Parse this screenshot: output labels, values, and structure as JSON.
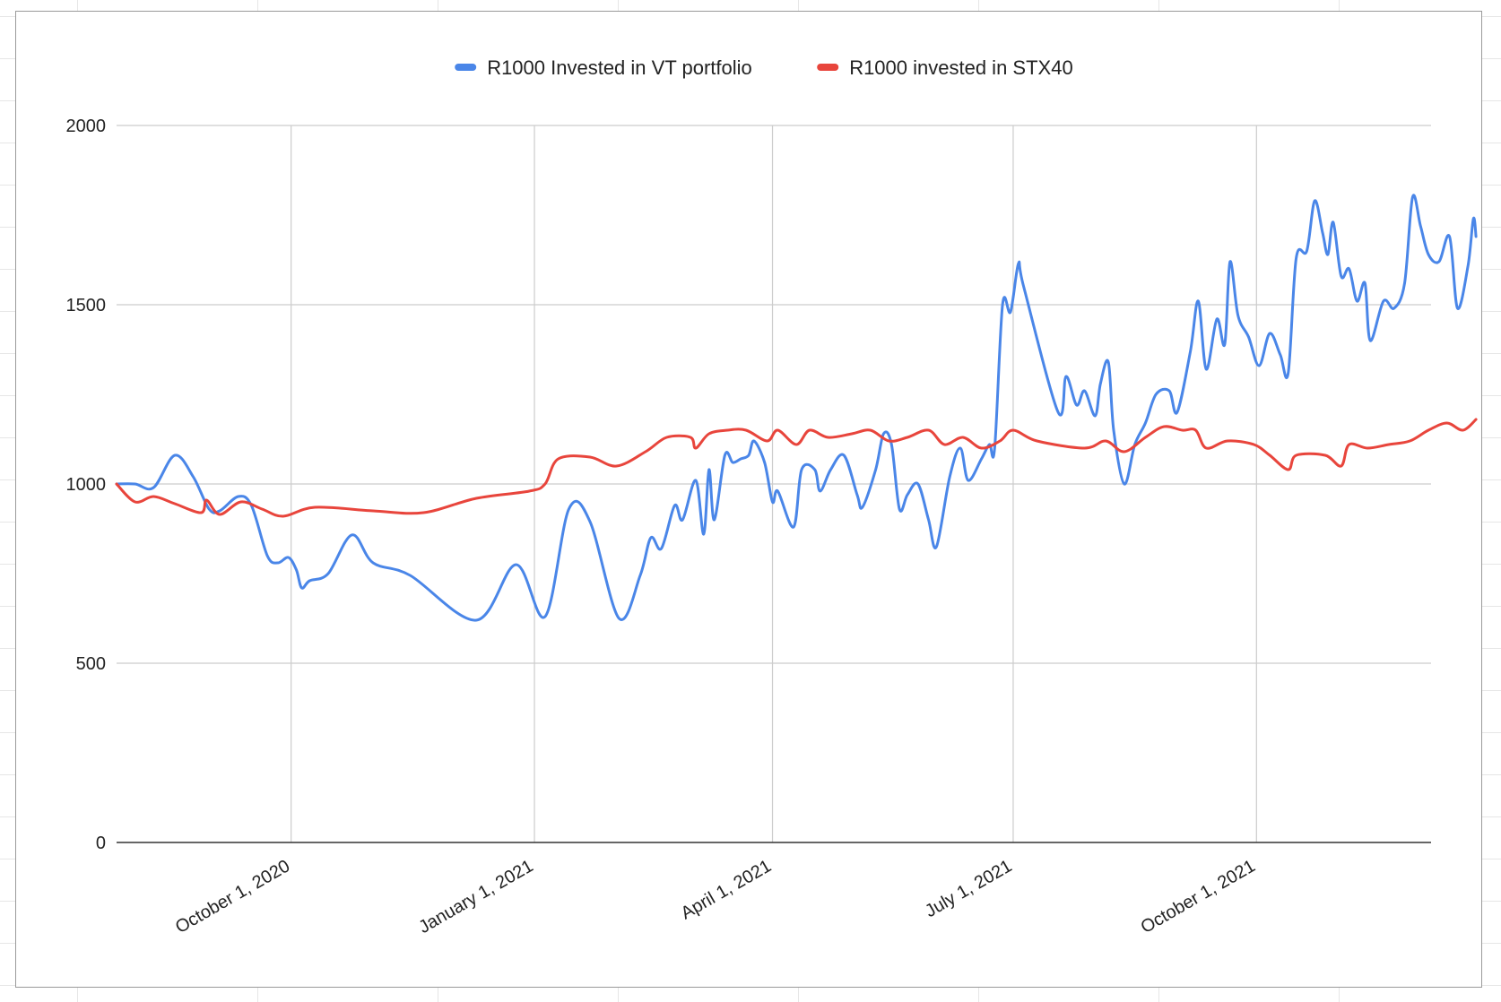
{
  "chart_data": {
    "type": "line",
    "title": "",
    "xlabel": "",
    "ylabel": "",
    "ylim": [
      0,
      2000
    ],
    "xlim": [
      "2020-07-27",
      "2021-12-06"
    ],
    "y_ticks": [
      0,
      500,
      1000,
      1500,
      2000
    ],
    "y_tick_labels": [
      "0",
      "500",
      "1000",
      "1500",
      "2000"
    ],
    "x_ticks": [
      "2020-10-01",
      "2021-01-01",
      "2021-04-01",
      "2021-07-01",
      "2021-10-01"
    ],
    "x_tick_labels": [
      "October 1, 2020",
      "January 1, 2021",
      "April 1, 2021",
      "July 1, 2021",
      "October 1, 2021"
    ],
    "grid": true,
    "legend_position": "top-center",
    "series": [
      {
        "name": "R1000 Invested in VT portfolio",
        "color": "#4a86e8",
        "points": [
          [
            "2020-07-27",
            1000
          ],
          [
            "2020-08-03",
            1000
          ],
          [
            "2020-08-10",
            990
          ],
          [
            "2020-08-18",
            1080
          ],
          [
            "2020-08-25",
            1020
          ],
          [
            "2020-08-31",
            930
          ],
          [
            "2020-09-04",
            925
          ],
          [
            "2020-09-11",
            965
          ],
          [
            "2020-09-16",
            940
          ],
          [
            "2020-09-22",
            800
          ],
          [
            "2020-09-26",
            780
          ],
          [
            "2020-09-30",
            795
          ],
          [
            "2020-10-03",
            760
          ],
          [
            "2020-10-05",
            710
          ],
          [
            "2020-10-08",
            730
          ],
          [
            "2020-10-15",
            750
          ],
          [
            "2020-10-24",
            858
          ],
          [
            "2020-11-01",
            780
          ],
          [
            "2020-11-15",
            745
          ],
          [
            "2020-12-10",
            620
          ],
          [
            "2020-12-25",
            775
          ],
          [
            "2021-01-05",
            630
          ],
          [
            "2021-01-14",
            930
          ],
          [
            "2021-01-22",
            895
          ],
          [
            "2021-02-02",
            625
          ],
          [
            "2021-02-10",
            745
          ],
          [
            "2021-02-14",
            850
          ],
          [
            "2021-02-18",
            820
          ],
          [
            "2021-02-23",
            940
          ],
          [
            "2021-02-26",
            900
          ],
          [
            "2021-03-03",
            1010
          ],
          [
            "2021-03-06",
            860
          ],
          [
            "2021-03-08",
            1040
          ],
          [
            "2021-03-10",
            900
          ],
          [
            "2021-03-14",
            1080
          ],
          [
            "2021-03-17",
            1060
          ],
          [
            "2021-03-20",
            1070
          ],
          [
            "2021-03-23",
            1080
          ],
          [
            "2021-03-25",
            1120
          ],
          [
            "2021-03-29",
            1060
          ],
          [
            "2021-04-01",
            950
          ],
          [
            "2021-04-03",
            980
          ],
          [
            "2021-04-09",
            880
          ],
          [
            "2021-04-12",
            1040
          ],
          [
            "2021-04-17",
            1040
          ],
          [
            "2021-04-19",
            980
          ],
          [
            "2021-04-23",
            1040
          ],
          [
            "2021-04-28",
            1080
          ],
          [
            "2021-05-03",
            970
          ],
          [
            "2021-05-05",
            935
          ],
          [
            "2021-05-10",
            1040
          ],
          [
            "2021-05-13",
            1140
          ],
          [
            "2021-05-16",
            1110
          ],
          [
            "2021-05-19",
            930
          ],
          [
            "2021-05-22",
            970
          ],
          [
            "2021-05-26",
            1000
          ],
          [
            "2021-05-30",
            900
          ],
          [
            "2021-06-02",
            825
          ],
          [
            "2021-06-07",
            1020
          ],
          [
            "2021-06-11",
            1100
          ],
          [
            "2021-06-14",
            1010
          ],
          [
            "2021-06-19",
            1070
          ],
          [
            "2021-06-22",
            1110
          ],
          [
            "2021-06-24",
            1100
          ],
          [
            "2021-06-27",
            1500
          ],
          [
            "2021-06-30",
            1480
          ],
          [
            "2021-07-03",
            1615
          ],
          [
            "2021-07-05",
            1550
          ],
          [
            "2021-07-18",
            1200
          ],
          [
            "2021-07-21",
            1300
          ],
          [
            "2021-07-25",
            1220
          ],
          [
            "2021-07-28",
            1260
          ],
          [
            "2021-08-01",
            1190
          ],
          [
            "2021-08-03",
            1280
          ],
          [
            "2021-08-06",
            1340
          ],
          [
            "2021-08-08",
            1150
          ],
          [
            "2021-08-12",
            1000
          ],
          [
            "2021-08-16",
            1110
          ],
          [
            "2021-08-20",
            1170
          ],
          [
            "2021-08-24",
            1250
          ],
          [
            "2021-08-29",
            1260
          ],
          [
            "2021-09-01",
            1200
          ],
          [
            "2021-09-06",
            1370
          ],
          [
            "2021-09-09",
            1510
          ],
          [
            "2021-09-12",
            1320
          ],
          [
            "2021-09-16",
            1460
          ],
          [
            "2021-09-19",
            1390
          ],
          [
            "2021-09-21",
            1620
          ],
          [
            "2021-09-24",
            1470
          ],
          [
            "2021-09-28",
            1410
          ],
          [
            "2021-10-02",
            1330
          ],
          [
            "2021-10-06",
            1420
          ],
          [
            "2021-10-10",
            1360
          ],
          [
            "2021-10-13",
            1310
          ],
          [
            "2021-10-16",
            1630
          ],
          [
            "2021-10-20",
            1650
          ],
          [
            "2021-10-23",
            1790
          ],
          [
            "2021-10-26",
            1700
          ],
          [
            "2021-10-28",
            1640
          ],
          [
            "2021-10-30",
            1730
          ],
          [
            "2021-11-02",
            1580
          ],
          [
            "2021-11-05",
            1600
          ],
          [
            "2021-11-08",
            1510
          ],
          [
            "2021-11-11",
            1560
          ],
          [
            "2021-11-13",
            1400
          ],
          [
            "2021-11-18",
            1510
          ],
          [
            "2021-11-22",
            1490
          ],
          [
            "2021-11-26",
            1560
          ],
          [
            "2021-11-29",
            1800
          ],
          [
            "2021-12-02",
            1720
          ],
          [
            "2021-12-05",
            1640
          ],
          [
            "2021-12-09",
            1620
          ],
          [
            "2021-12-13",
            1690
          ],
          [
            "2021-12-16",
            1490
          ],
          [
            "2021-12-20",
            1610
          ],
          [
            "2021-12-22",
            1740
          ],
          [
            "2021-12-23",
            1690
          ]
        ]
      },
      {
        "name": "R1000 invested in STX40",
        "color": "#e8453c",
        "points": [
          [
            "2020-07-27",
            1000
          ],
          [
            "2020-08-03",
            950
          ],
          [
            "2020-08-10",
            965
          ],
          [
            "2020-08-18",
            945
          ],
          [
            "2020-08-28",
            920
          ],
          [
            "2020-08-30",
            955
          ],
          [
            "2020-09-04",
            915
          ],
          [
            "2020-09-12",
            950
          ],
          [
            "2020-09-20",
            930
          ],
          [
            "2020-09-28",
            910
          ],
          [
            "2020-10-10",
            935
          ],
          [
            "2020-11-01",
            925
          ],
          [
            "2020-11-20",
            920
          ],
          [
            "2020-12-10",
            960
          ],
          [
            "2020-12-30",
            980
          ],
          [
            "2021-01-05",
            1000
          ],
          [
            "2021-01-10",
            1070
          ],
          [
            "2021-01-22",
            1075
          ],
          [
            "2021-02-01",
            1050
          ],
          [
            "2021-02-12",
            1090
          ],
          [
            "2021-02-20",
            1130
          ],
          [
            "2021-03-01",
            1130
          ],
          [
            "2021-03-03",
            1100
          ],
          [
            "2021-03-08",
            1140
          ],
          [
            "2021-03-15",
            1150
          ],
          [
            "2021-03-22",
            1150
          ],
          [
            "2021-03-30",
            1120
          ],
          [
            "2021-04-03",
            1150
          ],
          [
            "2021-04-10",
            1110
          ],
          [
            "2021-04-15",
            1150
          ],
          [
            "2021-04-22",
            1130
          ],
          [
            "2021-05-01",
            1140
          ],
          [
            "2021-05-08",
            1150
          ],
          [
            "2021-05-15",
            1120
          ],
          [
            "2021-05-22",
            1130
          ],
          [
            "2021-05-30",
            1150
          ],
          [
            "2021-06-05",
            1110
          ],
          [
            "2021-06-12",
            1130
          ],
          [
            "2021-06-19",
            1100
          ],
          [
            "2021-06-26",
            1120
          ],
          [
            "2021-07-01",
            1150
          ],
          [
            "2021-07-10",
            1120
          ],
          [
            "2021-07-28",
            1100
          ],
          [
            "2021-08-05",
            1120
          ],
          [
            "2021-08-12",
            1090
          ],
          [
            "2021-08-20",
            1130
          ],
          [
            "2021-08-27",
            1160
          ],
          [
            "2021-09-03",
            1150
          ],
          [
            "2021-09-08",
            1150
          ],
          [
            "2021-09-12",
            1100
          ],
          [
            "2021-09-20",
            1120
          ],
          [
            "2021-09-30",
            1110
          ],
          [
            "2021-10-06",
            1080
          ],
          [
            "2021-10-13",
            1040
          ],
          [
            "2021-10-16",
            1080
          ],
          [
            "2021-10-27",
            1080
          ],
          [
            "2021-11-02",
            1050
          ],
          [
            "2021-11-05",
            1110
          ],
          [
            "2021-11-12",
            1100
          ],
          [
            "2021-11-20",
            1110
          ],
          [
            "2021-11-28",
            1120
          ],
          [
            "2021-12-05",
            1150
          ],
          [
            "2021-12-12",
            1170
          ],
          [
            "2021-12-18",
            1150
          ],
          [
            "2021-12-23",
            1180
          ]
        ]
      }
    ]
  }
}
